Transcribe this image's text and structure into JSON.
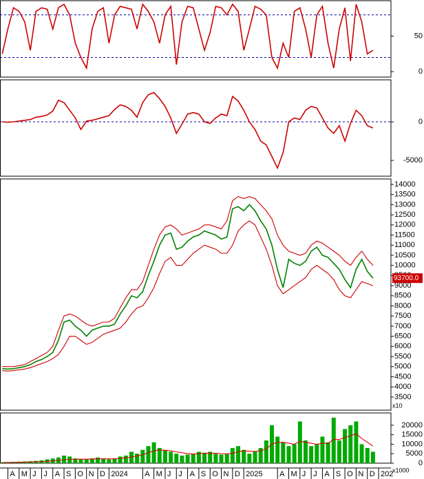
{
  "chart_data": [
    {
      "type": "line",
      "x": [
        -1,
        -0.5,
        0,
        0.5,
        1,
        1.5,
        2,
        2.5,
        3,
        3.5,
        4,
        4.5,
        5,
        5.5,
        6,
        6.5,
        7,
        7.5,
        8,
        8.5,
        9,
        9.5,
        10,
        10.5,
        11,
        11.5,
        12,
        12.5,
        13,
        13.5,
        14,
        14.5,
        15,
        15.5,
        16,
        16.5,
        17,
        17.5,
        18,
        18.5,
        19,
        19.5,
        20,
        20.5,
        21,
        21.5,
        22,
        22.5,
        23,
        23.5,
        24,
        24.5,
        25,
        25.5,
        26,
        26.5,
        27,
        27.5,
        28,
        28.5,
        29,
        29.5,
        30,
        30.5,
        31,
        31.5,
        32
      ],
      "xlim": [
        -1.2,
        33.6
      ],
      "ylim": [
        -7.7,
        100
      ],
      "yticks": [
        0,
        50
      ],
      "guides": [
        20,
        80
      ],
      "guide_color": "#0000aa",
      "series": [
        {
          "color": "#cc0000",
          "values": [
            25,
            60,
            90,
            85,
            70,
            30,
            85,
            90,
            88,
            60,
            90,
            95,
            80,
            40,
            20,
            5,
            60,
            85,
            90,
            40,
            80,
            92,
            90,
            88,
            60,
            95,
            85,
            70,
            40,
            80,
            92,
            10,
            70,
            92,
            90,
            60,
            30,
            55,
            92,
            90,
            80,
            95,
            85,
            30,
            60,
            92,
            88,
            80,
            20,
            5,
            40,
            20,
            85,
            90,
            60,
            20,
            80,
            92,
            40,
            5,
            60,
            90,
            15,
            95,
            70,
            25,
            30
          ]
        }
      ]
    },
    {
      "type": "line",
      "ylim": [
        -7050,
        5450
      ],
      "yticks": [
        -5000,
        0
      ],
      "guides": [
        0
      ],
      "guide_color": "#0000aa",
      "series": [
        {
          "color": "#cc0000",
          "values": [
            0,
            -50,
            0,
            100,
            200,
            300,
            600,
            700,
            900,
            1400,
            2800,
            2500,
            1500,
            500,
            -1000,
            100,
            200,
            400,
            600,
            800,
            1600,
            2200,
            2000,
            1500,
            600,
            2500,
            3500,
            3800,
            3000,
            2000,
            500,
            -1500,
            -300,
            1000,
            1200,
            1000,
            0,
            -200,
            500,
            1000,
            800,
            3300,
            2700,
            1500,
            0,
            -1000,
            -2500,
            -3000,
            -4500,
            -6000,
            -4000,
            0,
            500,
            300,
            1500,
            2000,
            1800,
            500,
            -800,
            -1500,
            -500,
            -2500,
            -200,
            1500,
            800,
            -500,
            -800
          ]
        }
      ]
    },
    {
      "type": "line",
      "ylim": [
        2850,
        14270
      ],
      "yticks": [
        3500,
        4000,
        4500,
        5000,
        5500,
        6000,
        6500,
        7000,
        7500,
        8000,
        8500,
        9000,
        9500,
        10000,
        10500,
        11000,
        11500,
        12000,
        12500,
        13000,
        13500,
        14000
      ],
      "scale_label": "x10",
      "last_label": "93700.0",
      "last_label_color": "#cc0000",
      "series": [
        {
          "color": "#008000",
          "values": [
            4900,
            4880,
            4900,
            4950,
            5000,
            5100,
            5250,
            5350,
            5500,
            5700,
            6300,
            7200,
            7300,
            7000,
            6800,
            6500,
            6800,
            6900,
            7000,
            7000,
            7100,
            7600,
            8000,
            8500,
            8400,
            8700,
            9500,
            10200,
            11000,
            11500,
            11600,
            10800,
            10900,
            11200,
            11400,
            11500,
            11700,
            11600,
            11500,
            11300,
            11400,
            12800,
            12900,
            12700,
            13000,
            12700,
            12200,
            11800,
            11000,
            9800,
            8900,
            10300,
            10100,
            10000,
            10200,
            10700,
            10900,
            10500,
            10400,
            10100,
            9800,
            9300,
            8900,
            9800,
            10300,
            9700,
            9370
          ]
        },
        {
          "color": "#cc0000",
          "values": [
            5000,
            5000,
            5000,
            5050,
            5100,
            5250,
            5400,
            5550,
            5700,
            6000,
            6800,
            7500,
            7600,
            7500,
            7300,
            7100,
            7000,
            7100,
            7200,
            7200,
            7400,
            7900,
            8400,
            8800,
            8800,
            9200,
            10000,
            10800,
            11500,
            11900,
            12000,
            11800,
            11500,
            11600,
            11700,
            11800,
            12000,
            12000,
            11900,
            11800,
            12200,
            13200,
            13400,
            13300,
            13400,
            13300,
            13000,
            12700,
            12300,
            11500,
            11000,
            10700,
            10600,
            10500,
            10600,
            11000,
            11200,
            11100,
            10900,
            10700,
            10500,
            10200,
            10000,
            10400,
            10700,
            10300,
            10000
          ]
        },
        {
          "color": "#cc0000",
          "values": [
            4800,
            4780,
            4800,
            4850,
            4880,
            4950,
            5050,
            5150,
            5250,
            5400,
            5600,
            6000,
            6500,
            6500,
            6300,
            6100,
            6200,
            6400,
            6600,
            6700,
            6800,
            6900,
            7200,
            7600,
            7900,
            8000,
            8400,
            8900,
            9600,
            10200,
            10400,
            10000,
            10000,
            10300,
            10600,
            10800,
            11000,
            10900,
            10800,
            10600,
            10600,
            11000,
            11700,
            12000,
            12200,
            12000,
            11400,
            10800,
            10000,
            9000,
            8600,
            8800,
            9000,
            9200,
            9400,
            9800,
            10000,
            9800,
            9600,
            9300,
            8800,
            8500,
            8400,
            8800,
            9200,
            9100,
            9000
          ]
        }
      ]
    },
    {
      "type": "bar",
      "ylim": [
        0,
        26500
      ],
      "yticks": [
        0,
        5000,
        10000,
        15000,
        20000
      ],
      "scale_label": "x1000",
      "xticks": [
        {
          "value": -0.5,
          "label": "A"
        },
        {
          "value": 0.5,
          "label": "M"
        },
        {
          "value": 1.5,
          "label": "J"
        },
        {
          "value": 2.5,
          "label": "J"
        },
        {
          "value": 3.5,
          "label": "A"
        },
        {
          "value": 4.5,
          "label": "S"
        },
        {
          "value": 5.5,
          "label": "O"
        },
        {
          "value": 6.5,
          "label": "N"
        },
        {
          "value": 7.5,
          "label": "D"
        },
        {
          "value": 8.5,
          "label": "2024"
        },
        {
          "value": 11.5,
          "label": "A"
        },
        {
          "value": 12.5,
          "label": "M"
        },
        {
          "value": 13.5,
          "label": "J"
        },
        {
          "value": 14.5,
          "label": "J"
        },
        {
          "value": 15.5,
          "label": "A"
        },
        {
          "value": 16.5,
          "label": "S"
        },
        {
          "value": 17.5,
          "label": "O"
        },
        {
          "value": 18.5,
          "label": "N"
        },
        {
          "value": 19.5,
          "label": "D"
        },
        {
          "value": 20.5,
          "label": "2025"
        },
        {
          "value": 23.5,
          "label": "A"
        },
        {
          "value": 24.5,
          "label": "M"
        },
        {
          "value": 25.5,
          "label": "J"
        },
        {
          "value": 26.5,
          "label": "J"
        },
        {
          "value": 27.5,
          "label": "A"
        },
        {
          "value": 28.5,
          "label": "S"
        },
        {
          "value": 29.5,
          "label": "O"
        },
        {
          "value": 30.5,
          "label": "N"
        },
        {
          "value": 31.5,
          "label": "D"
        },
        {
          "value": 32.5,
          "label": "202"
        }
      ],
      "series": [
        {
          "type": "bar",
          "color": "#00aa00",
          "values": [
            500,
            600,
            700,
            800,
            900,
            1000,
            1200,
            1500,
            2000,
            2500,
            3000,
            4000,
            3500,
            2500,
            2000,
            2200,
            2500,
            3000,
            2500,
            2000,
            2500,
            3500,
            4000,
            6000,
            5000,
            7000,
            9000,
            11000,
            8000,
            7000,
            6000,
            5000,
            4000,
            4500,
            5000,
            6000,
            5500,
            6000,
            5000,
            4500,
            5000,
            8000,
            9000,
            7000,
            5000,
            6000,
            8000,
            12000,
            20000,
            14000,
            11000,
            9000,
            10000,
            22000,
            12000,
            9000,
            10000,
            14000,
            11000,
            24000,
            12000,
            18000,
            20000,
            22000,
            10000,
            8000,
            6000
          ]
        },
        {
          "type": "line",
          "color": "#dd0000",
          "values": [
            300,
            350,
            400,
            450,
            500,
            600,
            700,
            800,
            1000,
            1200,
            1500,
            1800,
            2000,
            2100,
            2100,
            2100,
            2200,
            2300,
            2300,
            2300,
            2300,
            2500,
            2800,
            3200,
            3800,
            4500,
            5500,
            6500,
            7000,
            6800,
            6500,
            6000,
            5500,
            5000,
            4800,
            5000,
            5200,
            5300,
            5200,
            5000,
            4900,
            5200,
            6000,
            6500,
            6300,
            6200,
            6500,
            7500,
            10000,
            11000,
            11000,
            10500,
            10000,
            11500,
            11000,
            10500,
            10000,
            10500,
            10500,
            12500,
            12500,
            13500,
            14500,
            15500,
            13000,
            11000,
            9000
          ]
        }
      ]
    }
  ]
}
